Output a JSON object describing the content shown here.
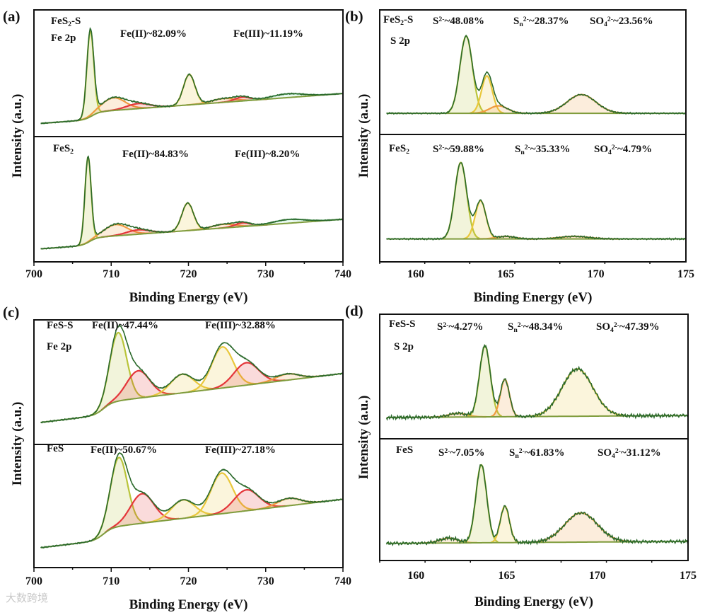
{
  "watermark": "大数跨境",
  "colors": {
    "raw": "#2c6a2c",
    "baseline": "#7f9c3c",
    "yellowgreen": "#b9c43a",
    "yellow": "#e9c73b",
    "orange": "#f09a3e",
    "red": "#e4363a",
    "lightgreen": "#8fdcb4"
  },
  "chart_data": [
    {
      "panel_label": "(a)",
      "type": "line",
      "xlabel": "Binding Energy (eV)",
      "ylabel": "Intensity (a.u.)",
      "xlim": [
        700,
        740
      ],
      "xticks": [
        "700",
        "710",
        "720",
        "730",
        "740"
      ],
      "ylim": [
        0,
        1
      ],
      "grid": false,
      "subplots": [
        {
          "sample": [
            {
              "t": "FeS"
            },
            {
              "t": "2",
              "sub": true
            },
            {
              "t": "-S"
            }
          ],
          "region": "Fe 2p",
          "annotations": [
            [
              {
                "t": "Fe(II)~82.09%"
              }
            ],
            [
              {
                "t": "Fe(III)~11.19%"
              }
            ]
          ],
          "background": {
            "b0": 0.1,
            "slope": 0.0045,
            "step": 0.06,
            "step_center": 707.5,
            "step_width": 0.5
          },
          "components": [
            {
              "center": 707.3,
              "amplitude": 0.68,
              "sigma": 0.45,
              "color": "yellowgreen"
            },
            {
              "center": 710.3,
              "amplitude": 0.1,
              "sigma": 1.5,
              "color": "orange"
            },
            {
              "center": 713.5,
              "amplitude": 0.04,
              "sigma": 1.5,
              "color": "red"
            },
            {
              "center": 720.1,
              "amplitude": 0.24,
              "sigma": 0.75,
              "color": "yellow"
            },
            {
              "center": 724.5,
              "amplitude": 0.03,
              "sigma": 1.5,
              "color": "orange"
            },
            {
              "center": 727.0,
              "amplitude": 0.03,
              "sigma": 1.0,
              "color": "red"
            },
            {
              "center": 732.8,
              "amplitude": 0.03,
              "sigma": 2.0,
              "color": "lightgreen"
            }
          ]
        },
        {
          "sample": [
            {
              "t": "FeS"
            },
            {
              "t": "2",
              "sub": true
            }
          ],
          "region": "",
          "annotations": [
            [
              {
                "t": "Fe(II)~84.83%"
              }
            ],
            [
              {
                "t": "Fe(III)~8.20%"
              }
            ]
          ],
          "background": {
            "b0": 0.1,
            "slope": 0.0045,
            "step": 0.06,
            "step_center": 707.2,
            "step_width": 0.5
          },
          "components": [
            {
              "center": 707.0,
              "amplitude": 0.68,
              "sigma": 0.4,
              "color": "yellowgreen"
            },
            {
              "center": 710.6,
              "amplitude": 0.09,
              "sigma": 1.5,
              "color": "orange"
            },
            {
              "center": 713.5,
              "amplitude": 0.035,
              "sigma": 1.5,
              "color": "red"
            },
            {
              "center": 719.9,
              "amplitude": 0.22,
              "sigma": 0.75,
              "color": "yellow"
            },
            {
              "center": 724.5,
              "amplitude": 0.03,
              "sigma": 1.5,
              "color": "orange"
            },
            {
              "center": 727.0,
              "amplitude": 0.03,
              "sigma": 1.0,
              "color": "red"
            },
            {
              "center": 733.0,
              "amplitude": 0.03,
              "sigma": 2.0,
              "color": "lightgreen"
            }
          ]
        }
      ]
    },
    {
      "panel_label": "(b)",
      "type": "line",
      "xlabel": "Binding Energy (eV)",
      "ylabel": "Intensity (a.u.)",
      "xlim": [
        158,
        175
      ],
      "xticks": [
        "160",
        "165",
        "170",
        "175"
      ],
      "ylim": [
        0,
        1
      ],
      "grid": false,
      "subplots": [
        {
          "sample": [
            {
              "t": "FeS"
            },
            {
              "t": "2",
              "sub": true
            },
            {
              "t": "-S"
            }
          ],
          "region": "S 2p",
          "annotations": [
            [
              {
                "t": "S"
              },
              {
                "t": "2-",
                "sup": true
              },
              {
                "t": "~48.08%"
              }
            ],
            [
              {
                "t": "S"
              },
              {
                "t": "n",
                "sub": true
              },
              {
                "t": "2-",
                "sup": true
              },
              {
                "t": "~28.37%"
              }
            ],
            [
              {
                "t": "SO"
              },
              {
                "t": "4",
                "sub": true
              },
              {
                "t": "2-",
                "sup": true
              },
              {
                "t": "~23.56%"
              }
            ]
          ],
          "background": {
            "b0": 0.17,
            "slope": 0.0,
            "step": 0,
            "step_center": 165,
            "step_width": 1
          },
          "components": [
            {
              "center": 162.8,
              "amplitude": 0.62,
              "sigma": 0.35,
              "color": "yellowgreen"
            },
            {
              "center": 163.95,
              "amplitude": 0.3,
              "sigma": 0.3,
              "color": "yellow"
            },
            {
              "center": 164.6,
              "amplitude": 0.06,
              "sigma": 0.5,
              "color": "orange"
            },
            {
              "center": 169.2,
              "amplitude": 0.15,
              "sigma": 0.8,
              "color": "orange"
            }
          ]
        },
        {
          "sample": [
            {
              "t": "FeS"
            },
            {
              "t": "2",
              "sub": true
            }
          ],
          "region": "",
          "annotations": [
            [
              {
                "t": "S"
              },
              {
                "t": "2-",
                "sup": true
              },
              {
                "t": "~59.88%"
              }
            ],
            [
              {
                "t": "S"
              },
              {
                "t": "n",
                "sub": true
              },
              {
                "t": "2-",
                "sup": true
              },
              {
                "t": "~35.33%"
              }
            ],
            [
              {
                "t": "SO"
              },
              {
                "t": "4",
                "sub": true
              },
              {
                "t": "2-",
                "sup": true
              },
              {
                "t": "~4.79%"
              }
            ]
          ],
          "background": {
            "b0": 0.18,
            "slope": 0.0,
            "step": 0,
            "step_center": 165,
            "step_width": 1
          },
          "components": [
            {
              "center": 162.5,
              "amplitude": 0.6,
              "sigma": 0.33,
              "color": "yellowgreen"
            },
            {
              "center": 163.6,
              "amplitude": 0.3,
              "sigma": 0.3,
              "color": "yellow"
            },
            {
              "center": 165.0,
              "amplitude": 0.02,
              "sigma": 0.5,
              "color": "orange"
            },
            {
              "center": 168.8,
              "amplitude": 0.02,
              "sigma": 0.8,
              "color": "orange"
            }
          ]
        }
      ]
    },
    {
      "panel_label": "(c)",
      "type": "line",
      "xlabel": "Binding Energy (eV)",
      "ylabel": "Intensity (a.u.)",
      "xlim": [
        700,
        740
      ],
      "xticks": [
        "700",
        "710",
        "720",
        "730",
        "740"
      ],
      "ylim": [
        0,
        1
      ],
      "grid": false,
      "subplots": [
        {
          "sample": [
            {
              "t": "FeS-S"
            }
          ],
          "region": "Fe 2p",
          "annotations": [
            [
              {
                "t": "Fe(II)~47.44%"
              }
            ],
            [
              {
                "t": "Fe(III)~32.88%"
              }
            ]
          ],
          "background": {
            "b0": 0.17,
            "slope": 0.0075,
            "step": 0.1,
            "step_center": 709,
            "step_width": 0.6
          },
          "components": [
            {
              "center": 710.9,
              "amplitude": 0.55,
              "sigma": 1.1,
              "color": "yellowgreen"
            },
            {
              "center": 713.5,
              "amplitude": 0.22,
              "sigma": 1.5,
              "color": "red"
            },
            {
              "center": 719.2,
              "amplitude": 0.15,
              "sigma": 1.5,
              "color": "yellow"
            },
            {
              "center": 724.4,
              "amplitude": 0.33,
              "sigma": 1.4,
              "color": "yellow"
            },
            {
              "center": 727.5,
              "amplitude": 0.18,
              "sigma": 1.6,
              "color": "red"
            },
            {
              "center": 732.8,
              "amplitude": 0.05,
              "sigma": 1.5,
              "color": "orange"
            }
          ]
        },
        {
          "sample": [
            {
              "t": "FeS"
            }
          ],
          "region": "",
          "annotations": [
            [
              {
                "t": "Fe(II)~50.67%"
              }
            ],
            [
              {
                "t": "Fe(III)~27.18%"
              }
            ]
          ],
          "background": {
            "b0": 0.155,
            "slope": 0.0075,
            "step": 0.1,
            "step_center": 709,
            "step_width": 0.6
          },
          "components": [
            {
              "center": 711.0,
              "amplitude": 0.56,
              "sigma": 1.1,
              "color": "yellowgreen"
            },
            {
              "center": 714.0,
              "amplitude": 0.24,
              "sigma": 1.5,
              "color": "red"
            },
            {
              "center": 719.3,
              "amplitude": 0.15,
              "sigma": 1.5,
              "color": "yellow"
            },
            {
              "center": 724.3,
              "amplitude": 0.33,
              "sigma": 1.4,
              "color": "yellow"
            },
            {
              "center": 727.5,
              "amplitude": 0.17,
              "sigma": 1.6,
              "color": "red"
            },
            {
              "center": 733.0,
              "amplitude": 0.06,
              "sigma": 1.5,
              "color": "orange"
            }
          ]
        }
      ]
    },
    {
      "panel_label": "(d)",
      "type": "line",
      "xlabel": "Binding Energy (eV)",
      "ylabel": "Intensity (a.u.)",
      "xlim": [
        158,
        175
      ],
      "xticks": [
        "160",
        "165",
        "170",
        "175"
      ],
      "ylim": [
        0,
        1
      ],
      "grid": false,
      "subplots": [
        {
          "sample": [
            {
              "t": "FeS-S"
            }
          ],
          "region": "S 2p",
          "annotations": [
            [
              {
                "t": "S"
              },
              {
                "t": "2-",
                "sup": true
              },
              {
                "t": "~4.27%"
              }
            ],
            [
              {
                "t": "S"
              },
              {
                "t": "n",
                "sub": true
              },
              {
                "t": "2-",
                "sup": true
              },
              {
                "t": "~48.34%"
              }
            ],
            [
              {
                "t": "SO"
              },
              {
                "t": "4",
                "sub": true
              },
              {
                "t": "2-",
                "sup": true
              },
              {
                "t": "~47.39%"
              }
            ]
          ],
          "background": {
            "b0": 0.17,
            "slope": 0.001,
            "step": 0,
            "step_center": 165,
            "step_width": 1
          },
          "components": [
            {
              "center": 162.3,
              "amplitude": 0.03,
              "sigma": 0.5,
              "color": "orange"
            },
            {
              "center": 163.8,
              "amplitude": 0.57,
              "sigma": 0.3,
              "color": "yellowgreen"
            },
            {
              "center": 164.9,
              "amplitude": 0.3,
              "sigma": 0.25,
              "color": "orange"
            },
            {
              "center": 168.9,
              "amplitude": 0.38,
              "sigma": 0.85,
              "color": "yellow"
            }
          ]
        },
        {
          "sample": [
            {
              "t": "FeS"
            }
          ],
          "region": "",
          "annotations": [
            [
              {
                "t": "S"
              },
              {
                "t": "2-",
                "sup": true
              },
              {
                "t": "~7.05%"
              }
            ],
            [
              {
                "t": "S"
              },
              {
                "t": "n",
                "sub": true
              },
              {
                "t": "2-",
                "sup": true
              },
              {
                "t": "~61.83%"
              }
            ],
            [
              {
                "t": "SO"
              },
              {
                "t": "4",
                "sub": true
              },
              {
                "t": "2-",
                "sup": true
              },
              {
                "t": "~31.12%"
              }
            ]
          ],
          "background": {
            "b0": 0.14,
            "slope": 0.001,
            "step": 0,
            "step_center": 165,
            "step_width": 1
          },
          "components": [
            {
              "center": 161.8,
              "amplitude": 0.04,
              "sigma": 0.5,
              "color": "orange"
            },
            {
              "center": 163.6,
              "amplitude": 0.64,
              "sigma": 0.3,
              "color": "yellowgreen"
            },
            {
              "center": 164.9,
              "amplitude": 0.3,
              "sigma": 0.25,
              "color": "yellow"
            },
            {
              "center": 169.1,
              "amplitude": 0.24,
              "sigma": 0.9,
              "color": "orange"
            }
          ]
        }
      ]
    }
  ]
}
